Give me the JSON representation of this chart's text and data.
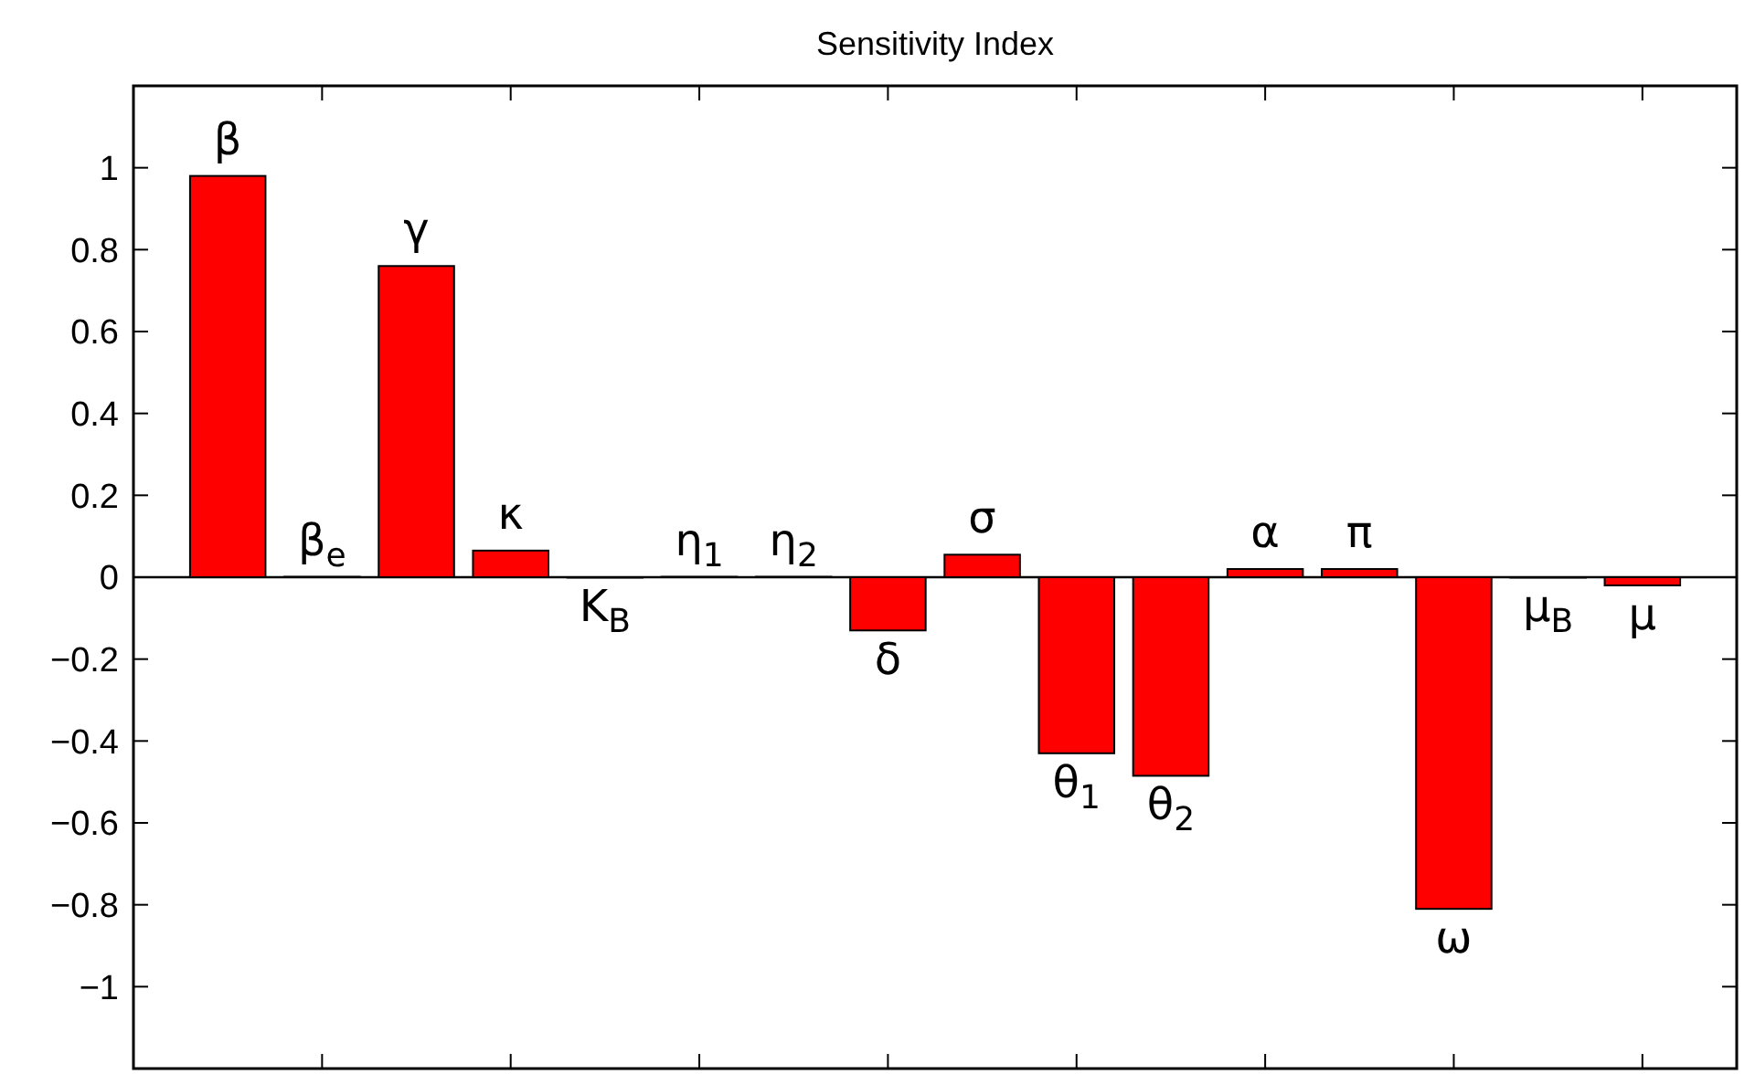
{
  "chart_data": {
    "type": "bar",
    "title": "Sensitivity Index",
    "categories": [
      "β",
      "β$_{e}$",
      "γ",
      "κ",
      "K$_{B}$",
      "η$_{1}$",
      "η$_{2}$",
      "δ",
      "σ",
      "θ$_{1}$",
      "θ$_{2}$",
      "α",
      "π",
      "ω",
      "μ$_{B}$",
      "μ"
    ],
    "values": [
      0.98,
      0.001,
      0.76,
      0.065,
      -0.001,
      0.001,
      0.001,
      -0.13,
      0.055,
      -0.43,
      -0.485,
      0.02,
      0.02,
      -0.81,
      -0.001,
      -0.02
    ],
    "color": "#ff0000",
    "ylim": [
      -1.2,
      1.2
    ],
    "yticks": [
      -1,
      -0.8,
      -0.6,
      -0.4,
      -0.2,
      0,
      0.2,
      0.4,
      0.6,
      0.8,
      1
    ],
    "grid": false
  }
}
